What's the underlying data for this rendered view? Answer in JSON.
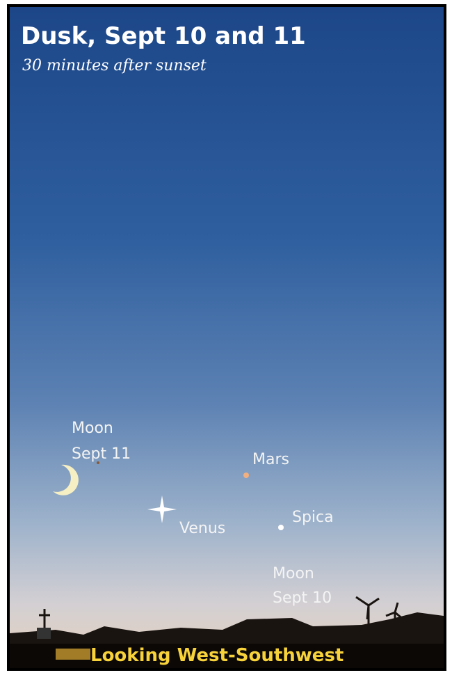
{
  "header": {
    "title": "Dusk, Sept 10 and 11",
    "subtitle": "30 minutes after sunset"
  },
  "objects": [
    {
      "lines": [
        "Moon",
        "Sept 11"
      ]
    },
    {
      "lines": [
        "Mars"
      ]
    },
    {
      "lines": [
        "Venus"
      ]
    },
    {
      "lines": [
        "Spica"
      ]
    },
    {
      "lines": [
        "Moon",
        "Sept 10"
      ]
    }
  ],
  "footer": "Looking West-Southwest"
}
